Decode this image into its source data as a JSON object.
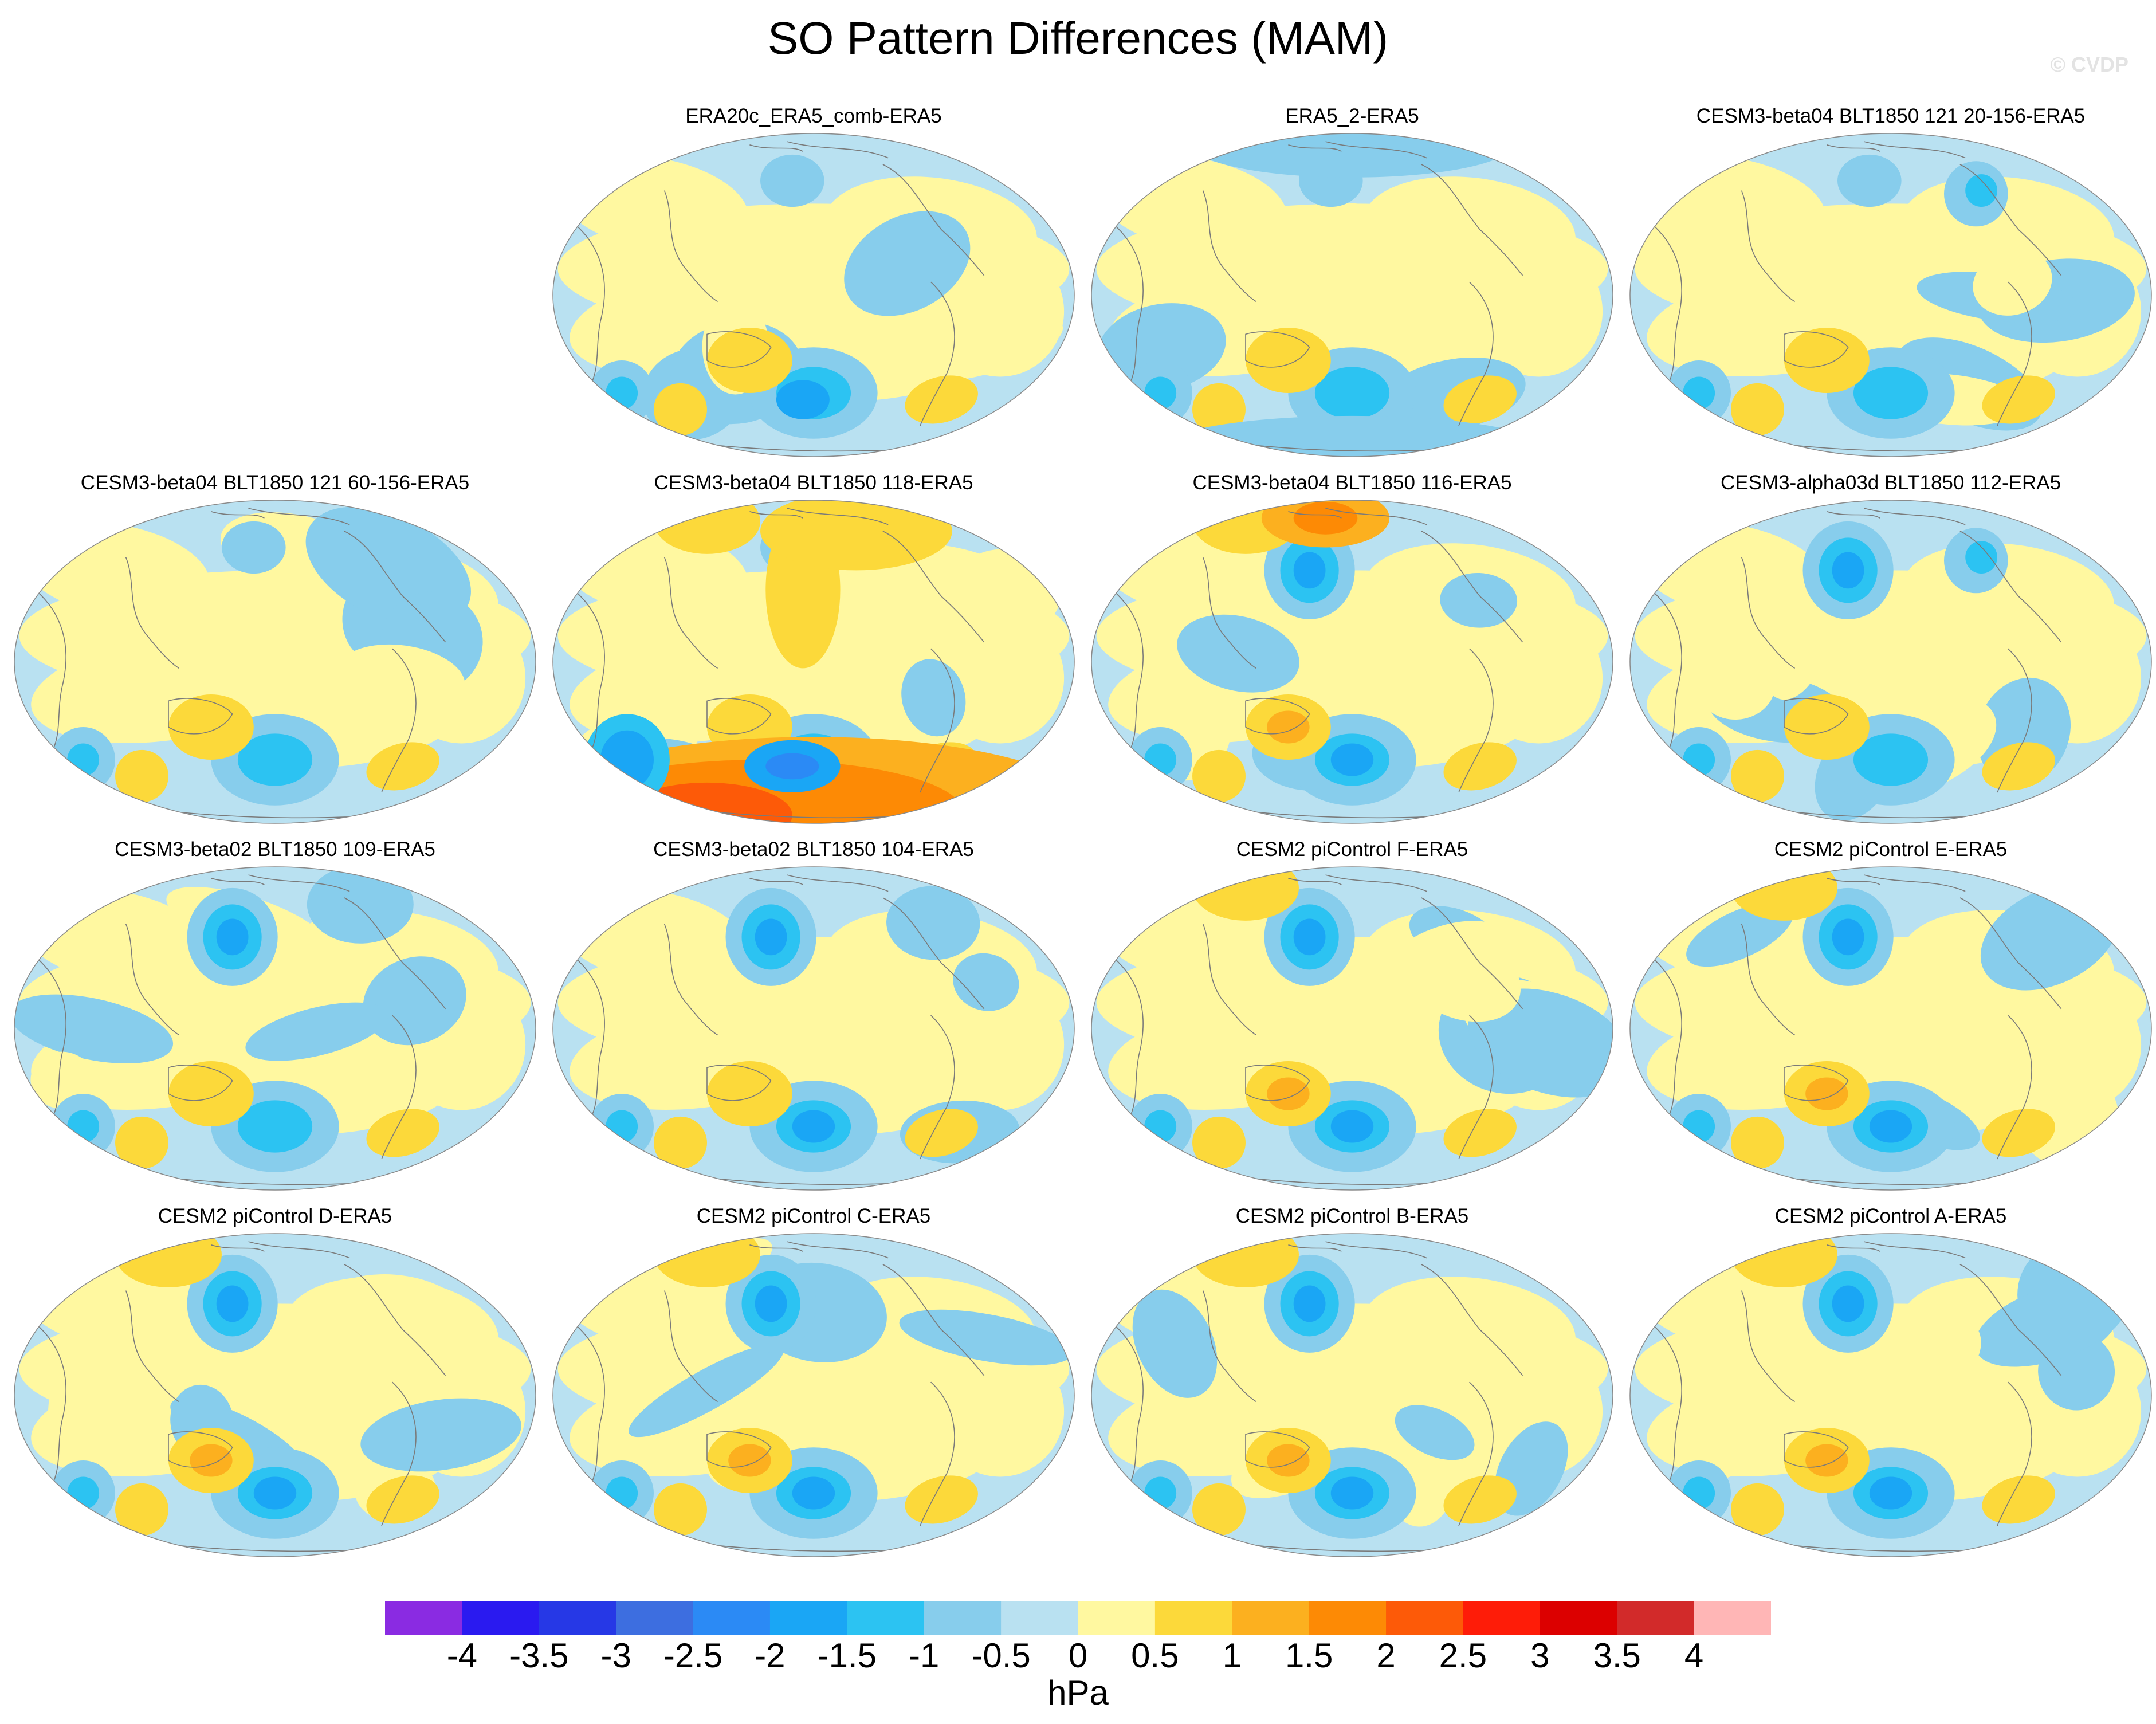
{
  "title": "SO Pattern Differences (MAM)",
  "watermark": "© CVDP",
  "panels": [
    {
      "title": "ERA20c_ERA5_comb-ERA5",
      "variant": 0
    },
    {
      "title": "ERA5_2-ERA5",
      "variant": 1
    },
    {
      "title": "CESM3-beta04 BLT1850 121 20-156-ERA5",
      "variant": 2
    },
    {
      "title": "CESM3-beta04 BLT1850 121 60-156-ERA5",
      "variant": 3
    },
    {
      "title": "CESM3-beta04 BLT1850 118-ERA5",
      "variant": 4
    },
    {
      "title": "CESM3-beta04 BLT1850 116-ERA5",
      "variant": 5
    },
    {
      "title": "CESM3-alpha03d BLT1850 112-ERA5",
      "variant": 6
    },
    {
      "title": "CESM3-beta02 BLT1850 109-ERA5",
      "variant": 7
    },
    {
      "title": "CESM3-beta02 BLT1850 104-ERA5",
      "variant": 8
    },
    {
      "title": "CESM2 piControl F-ERA5",
      "variant": 9
    },
    {
      "title": "CESM2 piControl E-ERA5",
      "variant": 10
    },
    {
      "title": "CESM2 piControl D-ERA5",
      "variant": 11
    },
    {
      "title": "CESM2 piControl C-ERA5",
      "variant": 12
    },
    {
      "title": "CESM2 piControl B-ERA5",
      "variant": 13
    },
    {
      "title": "CESM2 piControl A-ERA5",
      "variant": 14
    }
  ],
  "colorbar": {
    "colors": [
      "#8a2be2",
      "#2a1af0",
      "#2638e6",
      "#3d6ee0",
      "#2b8af5",
      "#1aa6f5",
      "#2cc3f2",
      "#87cdec",
      "#b9e1f1",
      "#fff8a0",
      "#fcd93a",
      "#fcb01f",
      "#fd8a05",
      "#fd5a08",
      "#fe1c08",
      "#dc0000",
      "#d22a2a",
      "#ffb6b6"
    ],
    "labels": [
      "-4",
      "-3.5",
      "-3",
      "-2.5",
      "-2",
      "-1.5",
      "-1",
      "-0.5",
      "0",
      "0.5",
      "1",
      "1.5",
      "2",
      "2.5",
      "3",
      "3.5",
      "4"
    ],
    "units": "hPa"
  }
}
